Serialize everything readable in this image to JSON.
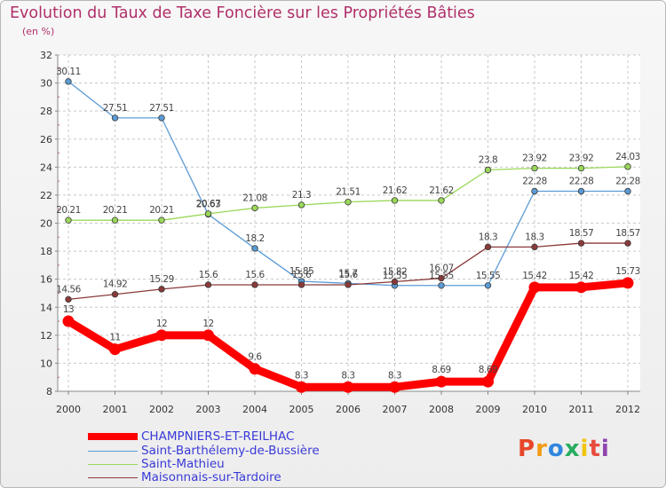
{
  "chart_data": {
    "type": "line",
    "title": "Evolution du Taux de Taxe Foncière sur les Propriétés Bâties",
    "subtitle": "(en %)",
    "x": [
      "2000",
      "2001",
      "2002",
      "2003",
      "2004",
      "2005",
      "2006",
      "2007",
      "2008",
      "2009",
      "2010",
      "2011",
      "2012"
    ],
    "ylim": [
      8,
      32
    ],
    "yticks": [
      "8",
      "10",
      "12",
      "14",
      "16",
      "18",
      "20",
      "22",
      "24",
      "26",
      "28",
      "30",
      "32"
    ],
    "series": [
      {
        "name": "CHAMPNIERS-ET-REILHAC",
        "color": "#ff0000",
        "values": [
          13,
          11,
          12,
          12,
          9.6,
          8.3,
          8.3,
          8.3,
          8.69,
          8.69,
          15.42,
          15.42,
          15.73
        ],
        "labels": [
          "13",
          "11",
          "12",
          "12",
          "9.6",
          "8.3",
          "8.3",
          "8.3",
          "8.69",
          "8.69",
          "15.42",
          "15.42",
          "15.73"
        ]
      },
      {
        "name": "Saint-Barthélemy-de-Bussière",
        "color": "#5b9bd5",
        "values": [
          30.11,
          27.51,
          27.51,
          20.63,
          18.2,
          15.85,
          15.7,
          15.55,
          15.55,
          15.55,
          22.28,
          22.28,
          22.28
        ],
        "labels": [
          "30.11",
          "27.51",
          "27.51",
          "20.63",
          "18.2",
          "15.85",
          "15.7",
          "15.55",
          "15.55",
          "15.55",
          "22.28",
          "22.28",
          "22.28"
        ]
      },
      {
        "name": "Saint-Mathieu",
        "color": "#9ad85a",
        "values": [
          20.21,
          20.21,
          20.21,
          20.67,
          21.08,
          21.3,
          21.51,
          21.62,
          21.62,
          23.8,
          23.92,
          23.92,
          24.03
        ],
        "labels": [
          "20.21",
          "20.21",
          "20.21",
          "20.67",
          "21.08",
          "21.3",
          "21.51",
          "21.62",
          "21.62",
          "23.8",
          "23.92",
          "23.92",
          "24.03"
        ]
      },
      {
        "name": "Maisonnais-sur-Tardoire",
        "color": "#8b3a3a",
        "values": [
          14.56,
          14.92,
          15.29,
          15.6,
          15.6,
          15.6,
          15.6,
          15.82,
          16.07,
          18.3,
          18.3,
          18.57,
          18.57
        ],
        "labels": [
          "14.56",
          "14.92",
          "15.29",
          "15.6",
          "15.6",
          "15.6",
          "15.6",
          "15.82",
          "16.07",
          "18.3",
          "18.3",
          "18.57",
          "18.57"
        ]
      }
    ]
  },
  "branding": {
    "logo_text": "Proxiti",
    "logo_colors": [
      "#e8462a",
      "#f39c12",
      "#2e86de",
      "#27ae60",
      "#f1c40f",
      "#e74c3c",
      "#8e44ad"
    ]
  }
}
